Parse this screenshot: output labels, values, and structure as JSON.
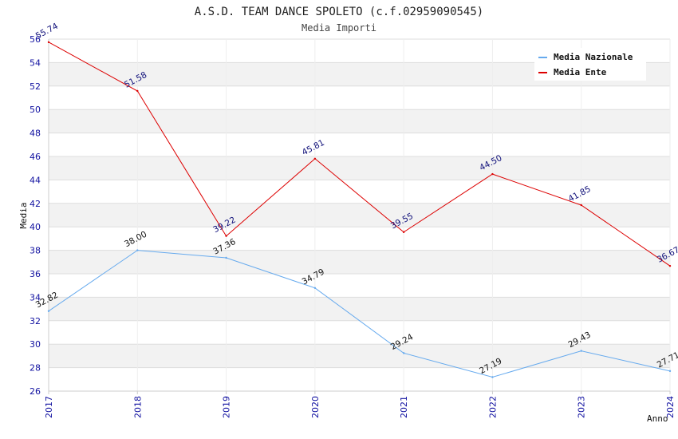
{
  "chart_data": {
    "type": "line",
    "title": "A.S.D. TEAM DANCE SPOLETO (c.f.02959090545)",
    "subtitle": "Media Importi",
    "xlabel": "Anno",
    "ylabel": "Media",
    "ylim": [
      26,
      56
    ],
    "yticks": [
      "26",
      "28",
      "30",
      "32",
      "34",
      "36",
      "38",
      "40",
      "42",
      "44",
      "46",
      "48",
      "50",
      "52",
      "54",
      "56"
    ],
    "categories": [
      "2017",
      "2018",
      "2019",
      "2020",
      "2021",
      "2022",
      "2023",
      "2024"
    ],
    "legend_position": "top-right",
    "series": [
      {
        "name": "Media Nazionale",
        "color": "#66aaee",
        "values": [
          32.82,
          38.0,
          37.36,
          34.79,
          29.24,
          27.19,
          29.43,
          27.71
        ],
        "labels": [
          "32.82",
          "38.00",
          "37.36",
          "34.79",
          "29.24",
          "27.19",
          "29.43",
          "27.71"
        ]
      },
      {
        "name": "Media Ente",
        "color": "#dd0000",
        "values": [
          55.74,
          51.58,
          39.22,
          45.81,
          39.55,
          44.5,
          41.85,
          36.67
        ],
        "labels": [
          "55.74",
          "51.58",
          "39.22",
          "45.81",
          "39.55",
          "44.50",
          "41.85",
          "36.67"
        ]
      }
    ]
  }
}
